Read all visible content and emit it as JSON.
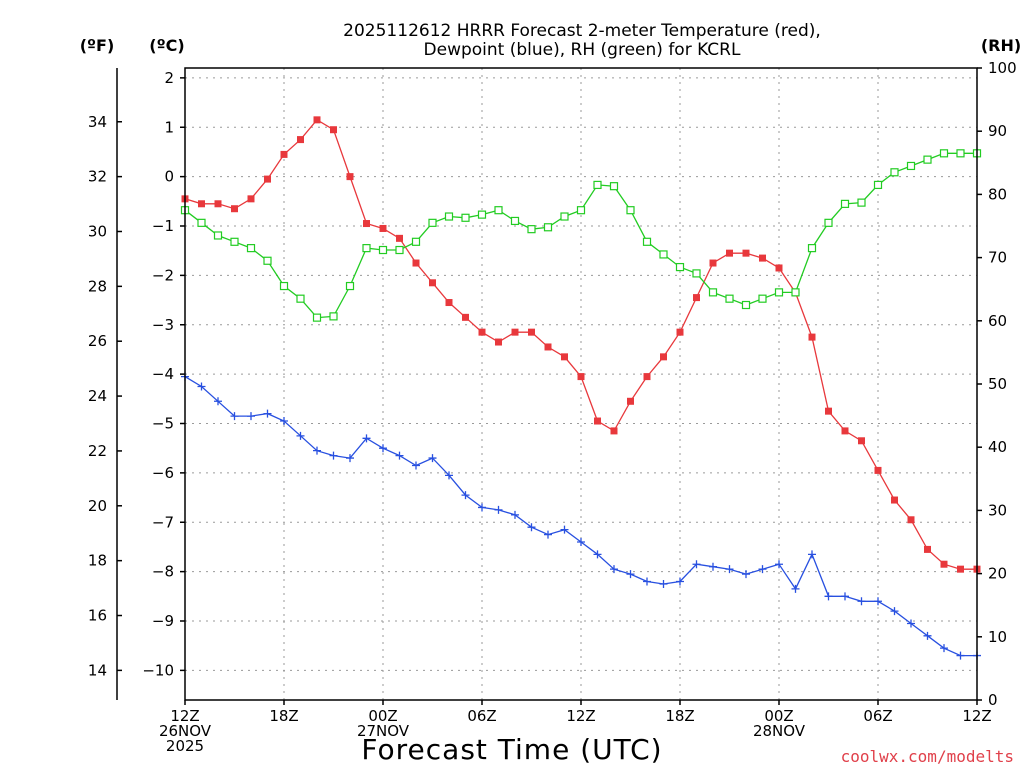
{
  "chart_data": {
    "type": "line",
    "title_lines": [
      "2025112612 HRRR Forecast 2-meter Temperature (red),",
      "Dewpoint (blue), RH (green) for KCRL"
    ],
    "unit_labels": {
      "fahrenheit": "(ºF)",
      "celsius": "(ºC)",
      "rh": "(RH)"
    },
    "xlabel": "Forecast Time (UTC)",
    "credit": "coolwx.com/modelts",
    "x_range": [
      0,
      48
    ],
    "x_ticks": [
      {
        "hour": 0,
        "lines": [
          "12Z",
          "26NOV",
          "2025"
        ]
      },
      {
        "hour": 6,
        "lines": [
          "18Z"
        ]
      },
      {
        "hour": 12,
        "lines": [
          "00Z",
          "27NOV"
        ]
      },
      {
        "hour": 18,
        "lines": [
          "06Z"
        ]
      },
      {
        "hour": 24,
        "lines": [
          "12Z"
        ]
      },
      {
        "hour": 30,
        "lines": [
          "18Z"
        ]
      },
      {
        "hour": 36,
        "lines": [
          "00Z",
          "28NOV"
        ]
      },
      {
        "hour": 42,
        "lines": [
          "06Z"
        ]
      },
      {
        "hour": 48,
        "lines": [
          "12Z"
        ]
      }
    ],
    "celsius_range": [
      -10.6,
      2.2
    ],
    "celsius_ticks": [
      2,
      1,
      0,
      -1,
      -2,
      -3,
      -4,
      -5,
      -6,
      -7,
      -8,
      -9,
      -10
    ],
    "celsius_tick_labels": [
      "2",
      "1",
      "0",
      "−1",
      "−2",
      "−3",
      "−4",
      "−5",
      "−6",
      "−7",
      "−8",
      "−9",
      "−10"
    ],
    "fahrenheit_ticks": [
      34,
      32,
      30,
      28,
      26,
      24,
      22,
      20,
      18,
      16,
      14
    ],
    "rh_range": [
      0,
      100
    ],
    "rh_ticks": [
      0,
      10,
      20,
      30,
      40,
      50,
      60,
      70,
      80,
      90,
      100
    ],
    "series": [
      {
        "name": "2-meter Temperature",
        "axis": "celsius",
        "color": "#e8383c",
        "marker": "filled-square",
        "values": [
          -0.45,
          -0.55,
          -0.55,
          -0.65,
          -0.45,
          -0.05,
          0.45,
          0.75,
          1.15,
          0.95,
          0.0,
          -0.95,
          -1.05,
          -1.25,
          -1.75,
          -2.15,
          -2.55,
          -2.85,
          -3.15,
          -3.35,
          -3.15,
          -3.15,
          -3.45,
          -3.65,
          -4.05,
          -4.95,
          -5.15,
          -4.55,
          -4.05,
          -3.65,
          -3.15,
          -2.45,
          -1.75,
          -1.55,
          -1.55,
          -1.65,
          -1.85,
          -2.35,
          -3.25,
          -4.75,
          -5.15,
          -5.35,
          -5.95,
          -6.55,
          -6.95,
          -7.55,
          -7.85,
          -7.95,
          -7.95
        ]
      },
      {
        "name": "Dewpoint",
        "axis": "celsius",
        "color": "#2850e0",
        "marker": "plus",
        "values": [
          -4.05,
          -4.25,
          -4.55,
          -4.85,
          -4.85,
          -4.8,
          -4.95,
          -5.25,
          -5.55,
          -5.65,
          -5.7,
          -5.3,
          -5.5,
          -5.65,
          -5.85,
          -5.7,
          -6.05,
          -6.45,
          -6.7,
          -6.75,
          -6.85,
          -7.1,
          -7.25,
          -7.15,
          -7.4,
          -7.65,
          -7.95,
          -8.05,
          -8.2,
          -8.25,
          -8.2,
          -7.85,
          -7.9,
          -7.95,
          -8.05,
          -7.95,
          -7.85,
          -8.35,
          -7.65,
          -8.5,
          -8.5,
          -8.6,
          -8.6,
          -8.8,
          -9.05,
          -9.3,
          -9.55,
          -9.7,
          -9.7
        ]
      },
      {
        "name": "RH",
        "axis": "rh",
        "color": "#22cc22",
        "marker": "open-square",
        "values": [
          77.5,
          75.5,
          73.5,
          72.5,
          71.5,
          69.5,
          65.5,
          63.5,
          60.5,
          60.7,
          65.5,
          71.5,
          71.2,
          71.2,
          72.5,
          75.5,
          76.5,
          76.3,
          76.8,
          77.5,
          75.8,
          74.5,
          74.8,
          76.5,
          77.5,
          81.5,
          81.3,
          77.5,
          72.5,
          70.5,
          68.5,
          67.5,
          64.5,
          63.5,
          62.5,
          63.5,
          64.5,
          64.5,
          71.5,
          75.5,
          78.5,
          78.7,
          81.5,
          83.5,
          84.5,
          85.5,
          86.5,
          86.5,
          86.5
        ]
      }
    ]
  }
}
